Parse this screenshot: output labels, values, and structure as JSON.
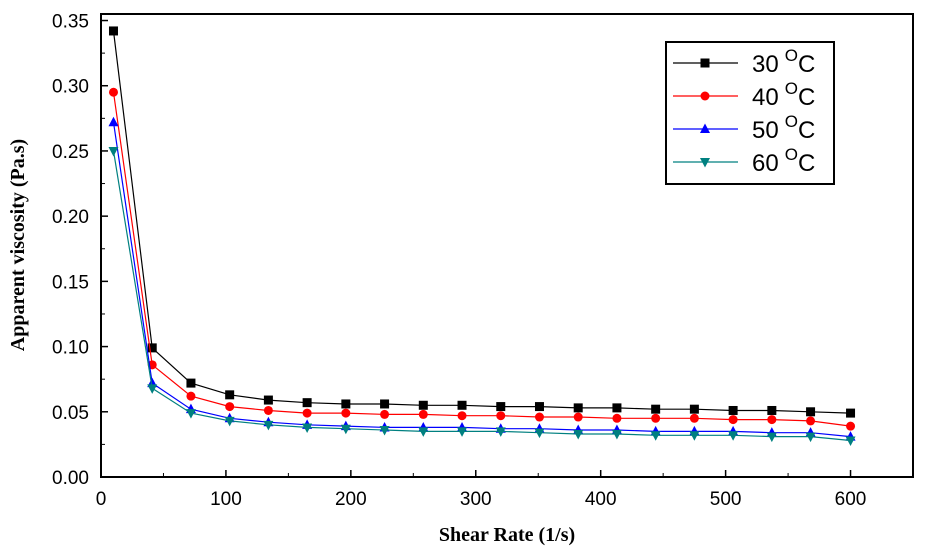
{
  "chart_data": {
    "type": "line",
    "title": "",
    "xlabel": "Shear Rate (1/s)",
    "ylabel": "Apparent viscosity (Pa.s)",
    "xlim": [
      0,
      650
    ],
    "ylim": [
      0,
      0.355
    ],
    "xticks": [
      0,
      100,
      200,
      300,
      400,
      500,
      600
    ],
    "xtick_labels": [
      "0",
      "100",
      "200",
      "300",
      "400",
      "500",
      "600"
    ],
    "yticks": [
      0.0,
      0.05,
      0.1,
      0.15,
      0.2,
      0.25,
      0.3,
      0.35
    ],
    "ytick_labels": [
      "0.00",
      "0.05",
      "0.10",
      "0.15",
      "0.20",
      "0.25",
      "0.30",
      "0.35"
    ],
    "x": [
      10,
      41,
      72,
      103,
      134,
      165,
      196,
      227,
      258,
      289,
      320,
      351,
      382,
      413,
      444,
      475,
      506,
      537,
      568,
      600
    ],
    "legend_position": "top-right",
    "series": [
      {
        "name": "30",
        "unit": "C",
        "superscript": "O",
        "color": "#000000",
        "marker": "square",
        "values": [
          0.342,
          0.099,
          0.072,
          0.063,
          0.059,
          0.057,
          0.056,
          0.056,
          0.055,
          0.055,
          0.054,
          0.054,
          0.053,
          0.053,
          0.052,
          0.052,
          0.051,
          0.051,
          0.05,
          0.049
        ]
      },
      {
        "name": "40",
        "unit": "C",
        "superscript": "O",
        "color": "#ff0000",
        "marker": "circle",
        "values": [
          0.295,
          0.086,
          0.062,
          0.054,
          0.051,
          0.049,
          0.049,
          0.048,
          0.048,
          0.047,
          0.047,
          0.046,
          0.046,
          0.045,
          0.045,
          0.045,
          0.044,
          0.044,
          0.043,
          0.039
        ]
      },
      {
        "name": "50",
        "unit": "C",
        "superscript": "O",
        "color": "#0000ff",
        "marker": "triangle-up",
        "values": [
          0.272,
          0.072,
          0.052,
          0.045,
          0.042,
          0.04,
          0.039,
          0.038,
          0.038,
          0.038,
          0.037,
          0.037,
          0.036,
          0.036,
          0.035,
          0.035,
          0.035,
          0.034,
          0.034,
          0.031
        ]
      },
      {
        "name": "60",
        "unit": "C",
        "superscript": "O",
        "color": "#008080",
        "marker": "triangle-down",
        "values": [
          0.25,
          0.068,
          0.049,
          0.043,
          0.04,
          0.038,
          0.037,
          0.036,
          0.035,
          0.035,
          0.035,
          0.034,
          0.033,
          0.033,
          0.032,
          0.032,
          0.032,
          0.031,
          0.031,
          0.028
        ]
      }
    ]
  }
}
